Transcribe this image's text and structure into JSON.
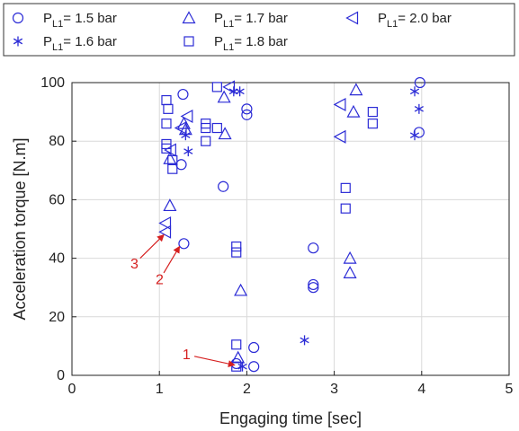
{
  "chart_data": {
    "type": "scatter",
    "xlabel": "Engaging time [sec]",
    "ylabel": "Acceleration torque [N.m]",
    "xlim": [
      0,
      5
    ],
    "ylim": [
      0,
      100
    ],
    "xticks": [
      "0",
      "1",
      "2",
      "3",
      "4",
      "5"
    ],
    "yticks": [
      "0",
      "20",
      "40",
      "60",
      "80",
      "100"
    ],
    "grid": true,
    "legend_position": "top",
    "marker_color": "#2b2bd6",
    "series": [
      {
        "name": "P",
        "subscript": "L1",
        "suffix": "= 1.5 bar",
        "marker": "circle",
        "points": [
          [
            1.27,
            96
          ],
          [
            1.25,
            72
          ],
          [
            1.28,
            45
          ],
          [
            1.73,
            64.5
          ],
          [
            2.0,
            91
          ],
          [
            2.0,
            89
          ],
          [
            1.88,
            4
          ],
          [
            2.08,
            9.5
          ],
          [
            2.08,
            3
          ],
          [
            2.76,
            43.5
          ],
          [
            2.76,
            31
          ],
          [
            2.76,
            30
          ],
          [
            3.98,
            100
          ],
          [
            3.97,
            83
          ]
        ]
      },
      {
        "name": "P",
        "subscript": "L1",
        "suffix": "= 1.6 bar",
        "marker": "star",
        "points": [
          [
            1.3,
            82
          ],
          [
            1.33,
            76.5
          ],
          [
            1.85,
            97
          ],
          [
            1.92,
            97
          ],
          [
            1.95,
            3
          ],
          [
            2.66,
            12
          ],
          [
            3.92,
            97
          ],
          [
            3.97,
            91
          ],
          [
            3.92,
            82
          ]
        ]
      },
      {
        "name": "P",
        "subscript": "L1",
        "suffix": "= 1.7 bar",
        "marker": "triangle",
        "points": [
          [
            1.12,
            58
          ],
          [
            1.12,
            74
          ],
          [
            1.28,
            86
          ],
          [
            1.3,
            84
          ],
          [
            1.75,
            82.5
          ],
          [
            1.74,
            95
          ],
          [
            1.93,
            29
          ],
          [
            1.9,
            6
          ],
          [
            3.18,
            40
          ],
          [
            3.18,
            35
          ],
          [
            3.22,
            90
          ],
          [
            3.25,
            97.5
          ]
        ]
      },
      {
        "name": "P",
        "subscript": "L1",
        "suffix": "= 1.8 bar",
        "marker": "square",
        "points": [
          [
            1.08,
            94
          ],
          [
            1.08,
            86
          ],
          [
            1.08,
            79
          ],
          [
            1.08,
            77.5
          ],
          [
            1.1,
            91
          ],
          [
            1.15,
            73.5
          ],
          [
            1.15,
            70.5
          ],
          [
            1.53,
            86
          ],
          [
            1.53,
            84.5
          ],
          [
            1.53,
            80
          ],
          [
            1.66,
            84.5
          ],
          [
            1.66,
            98.5
          ],
          [
            1.88,
            44
          ],
          [
            1.88,
            42
          ],
          [
            1.88,
            10.5
          ],
          [
            1.88,
            3
          ],
          [
            3.13,
            64
          ],
          [
            3.13,
            57
          ],
          [
            3.44,
            90
          ],
          [
            3.44,
            86
          ]
        ]
      },
      {
        "name": "P",
        "subscript": "L1",
        "suffix": "= 2.0 bar",
        "marker": "triangle-left",
        "points": [
          [
            1.07,
            52
          ],
          [
            1.07,
            49
          ],
          [
            1.13,
            77
          ],
          [
            1.25,
            84.5
          ],
          [
            1.32,
            88.5
          ],
          [
            1.8,
            98.5
          ],
          [
            3.07,
            92.5
          ],
          [
            3.07,
            81.5
          ]
        ]
      }
    ],
    "annotations": [
      {
        "label": "1",
        "from": [
          1.4,
          6.5
        ],
        "to": [
          1.86,
          3.5
        ]
      },
      {
        "label": "2",
        "from": [
          1.05,
          35
        ],
        "to": [
          1.23,
          44
        ]
      },
      {
        "label": "3",
        "from": [
          0.78,
          40
        ],
        "to": [
          1.05,
          48
        ]
      }
    ]
  }
}
